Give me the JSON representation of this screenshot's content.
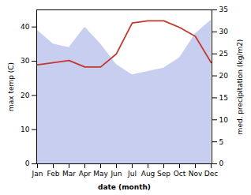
{
  "chart_data": {
    "type": "line",
    "categories": [
      "Jan",
      "Feb",
      "Mar",
      "Apr",
      "May",
      "Jun",
      "Jul",
      "Aug",
      "Sep",
      "Oct",
      "Nov",
      "Dec"
    ],
    "xlabel": "date (month)",
    "ylabel": "max temp (C)",
    "y2label": "med. precipitation (kg/m2)",
    "series": [
      {
        "type": "area",
        "color": "#aab4e8",
        "values": [
          39,
          35,
          34,
          40,
          35,
          29,
          26,
          27,
          28,
          31,
          38,
          42
        ]
      },
      {
        "type": "line",
        "axis": "y2",
        "color": "#c0392b",
        "values": [
          22.5,
          23,
          23.5,
          22,
          22,
          25,
          32,
          32.5,
          32.5,
          31,
          29,
          23
        ]
      }
    ],
    "ylim": [
      0,
      45
    ],
    "yticks": [
      0,
      10,
      20,
      30,
      40
    ],
    "y2lim": [
      0,
      35
    ],
    "y2ticks": [
      0,
      5,
      10,
      15,
      20,
      25,
      30,
      35
    ],
    "grid": false
  }
}
